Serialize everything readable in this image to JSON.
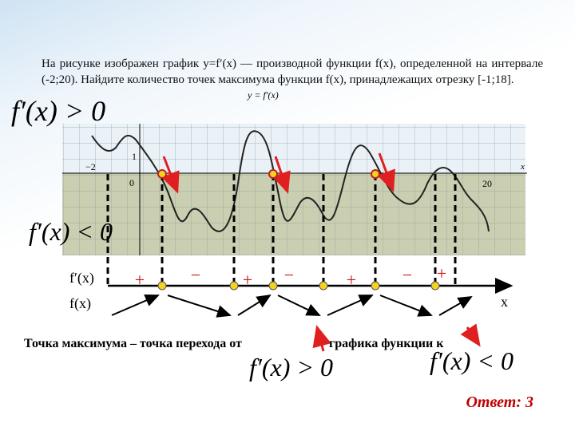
{
  "problem": "На рисунке изображен график y=f′(x) — производной функции f(x), определенной на интервале (-2;20). Найдите количество точек максимума функции f(x), принадлежащих отрезку [-1;18].",
  "graph": {
    "curve_label": "y = f′(x)",
    "x_axis_label": "x",
    "tick_labels": [
      "−2",
      "1",
      "0",
      "20"
    ]
  },
  "region_labels": {
    "positive": "f′(x) > 0",
    "negative": "f′(x) < 0"
  },
  "sign_chart": {
    "derivative_label": "f′(x)",
    "function_label": "f(x)",
    "signs": [
      "+",
      "−",
      "+",
      "−",
      "+",
      "−",
      "+"
    ],
    "axis_label": "x"
  },
  "conclusion": {
    "text_start": "Точка максимума – точка перехода от",
    "text_end": "графика функции к",
    "formula_positive": "f′(x) > 0",
    "formula_negative": "f′(x) < 0"
  },
  "answer": "Ответ: 3"
}
